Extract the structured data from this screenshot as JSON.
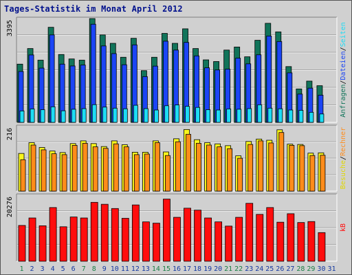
{
  "title": "Tages-Statistik im Monat April 2012",
  "colors": {
    "anfragen": "#11745a",
    "dateien": "#1b45f5",
    "seiten": "#1ddcf5",
    "besuche": "#f8f51d",
    "rechner": "#ff8c1a",
    "kb": "#ff0d0d",
    "day_highlight": "#1a7e44",
    "day_normal": "#1438a0"
  },
  "chart_data": [
    {
      "type": "bar",
      "name": "panel-hits",
      "y_label": "3395",
      "ylim": [
        0,
        3395
      ],
      "categories": [
        "1",
        "2",
        "3",
        "4",
        "5",
        "6",
        "7",
        "8",
        "9",
        "10",
        "11",
        "12",
        "13",
        "14",
        "15",
        "16",
        "17",
        "18",
        "19",
        "20",
        "21",
        "22",
        "23",
        "24",
        "25",
        "26",
        "27",
        "28",
        "29",
        "30",
        "31"
      ],
      "series": [
        {
          "name": "Anfragen",
          "values": [
            1905,
            2415,
            2035,
            3110,
            2220,
            2075,
            2035,
            3395,
            2860,
            2585,
            2130,
            2750,
            1692,
            2130,
            2910,
            2585,
            3060,
            2415,
            2045,
            1990,
            2365,
            2465,
            2145,
            2685,
            3240,
            2960,
            1825,
            1095,
            1350,
            1200,
            0
          ]
        },
        {
          "name": "Dateien",
          "values": [
            1665,
            2205,
            1775,
            2860,
            1905,
            1845,
            1875,
            3210,
            2500,
            2250,
            1885,
            2535,
            1498,
            1840,
            2655,
            2365,
            2615,
            2175,
            1785,
            1715,
            1740,
            2100,
            1915,
            2210,
            2825,
            2645,
            1620,
            925,
            1120,
            890,
            0
          ]
        },
        {
          "name": "Seiten",
          "values": [
            375,
            440,
            415,
            510,
            380,
            430,
            450,
            580,
            500,
            465,
            445,
            560,
            450,
            405,
            545,
            570,
            525,
            490,
            415,
            405,
            440,
            430,
            450,
            575,
            465,
            445,
            405,
            395,
            330,
            275,
            0
          ]
        }
      ]
    },
    {
      "type": "bar",
      "name": "panel-visits",
      "y_label": "216",
      "ylim": [
        0,
        216
      ],
      "categories": [
        "1",
        "2",
        "3",
        "4",
        "5",
        "6",
        "7",
        "8",
        "9",
        "10",
        "11",
        "12",
        "13",
        "14",
        "15",
        "16",
        "17",
        "18",
        "19",
        "20",
        "21",
        "22",
        "23",
        "24",
        "25",
        "26",
        "27",
        "28",
        "29",
        "30",
        "31"
      ],
      "series": [
        {
          "name": "Besuche",
          "values": [
            126,
            162,
            146,
            134,
            129,
            159,
            168,
            159,
            149,
            168,
            155,
            130,
            130,
            168,
            131,
            175,
            206,
            172,
            162,
            158,
            152,
            118,
            166,
            174,
            170,
            205,
            157,
            156,
            127,
            128,
            0
          ]
        },
        {
          "name": "Rechner",
          "values": [
            105,
            154,
            138,
            125,
            122,
            153,
            160,
            148,
            143,
            158,
            148,
            122,
            124,
            162,
            119,
            165,
            190,
            160,
            154,
            148,
            142,
            110,
            156,
            168,
            161,
            196,
            153,
            152,
            119,
            120,
            0
          ]
        }
      ]
    },
    {
      "type": "bar",
      "name": "panel-kb",
      "y_label": "20276",
      "ylim": [
        0,
        20276
      ],
      "categories": [
        "1",
        "2",
        "3",
        "4",
        "5",
        "6",
        "7",
        "8",
        "9",
        "10",
        "11",
        "12",
        "13",
        "14",
        "15",
        "16",
        "17",
        "18",
        "19",
        "20",
        "21",
        "22",
        "23",
        "24",
        "25",
        "26",
        "27",
        "28",
        "29",
        "30",
        "31"
      ],
      "series": [
        {
          "name": "kB",
          "values": [
            11000,
            13300,
            10900,
            16500,
            10600,
            13600,
            13300,
            18100,
            17500,
            16200,
            13200,
            17300,
            12100,
            11700,
            19100,
            13500,
            16300,
            15700,
            13300,
            12100,
            10800,
            13500,
            17800,
            14400,
            16500,
            12000,
            14600,
            11900,
            12200,
            8800,
            0
          ]
        }
      ]
    }
  ],
  "days": [
    {
      "label": "1",
      "weekend": true
    },
    {
      "label": "2",
      "weekend": false
    },
    {
      "label": "3",
      "weekend": false
    },
    {
      "label": "4",
      "weekend": false
    },
    {
      "label": "5",
      "weekend": false
    },
    {
      "label": "6",
      "weekend": false
    },
    {
      "label": "7",
      "weekend": true
    },
    {
      "label": "8",
      "weekend": true
    },
    {
      "label": "9",
      "weekend": false
    },
    {
      "label": "10",
      "weekend": false
    },
    {
      "label": "11",
      "weekend": false
    },
    {
      "label": "12",
      "weekend": false
    },
    {
      "label": "13",
      "weekend": false
    },
    {
      "label": "14",
      "weekend": true
    },
    {
      "label": "15",
      "weekend": true
    },
    {
      "label": "16",
      "weekend": false
    },
    {
      "label": "17",
      "weekend": false
    },
    {
      "label": "18",
      "weekend": false
    },
    {
      "label": "19",
      "weekend": false
    },
    {
      "label": "20",
      "weekend": false
    },
    {
      "label": "21",
      "weekend": true
    },
    {
      "label": "22",
      "weekend": true
    },
    {
      "label": "23",
      "weekend": false
    },
    {
      "label": "24",
      "weekend": false
    },
    {
      "label": "25",
      "weekend": false
    },
    {
      "label": "26",
      "weekend": false
    },
    {
      "label": "27",
      "weekend": false
    },
    {
      "label": "28",
      "weekend": true
    },
    {
      "label": "29",
      "weekend": true
    },
    {
      "label": "30",
      "weekend": false
    },
    {
      "label": "31",
      "weekend": false
    }
  ],
  "legend_top": [
    {
      "text": "Anfragen",
      "color": "#11745a"
    },
    {
      "text": "/",
      "color": "#000000"
    },
    {
      "text": "Dateien",
      "color": "#1b45f5"
    },
    {
      "text": "/",
      "color": "#000000"
    },
    {
      "text": "Seiten",
      "color": "#1ddcf5"
    }
  ],
  "legend_mid": [
    {
      "text": "Besuche",
      "color": "#e0d800"
    },
    {
      "text": "/",
      "color": "#000000"
    },
    {
      "text": "Rechner",
      "color": "#ff8c1a"
    }
  ],
  "legend_bottom": [
    {
      "text": "kB",
      "color": "#ff0d0d"
    }
  ]
}
